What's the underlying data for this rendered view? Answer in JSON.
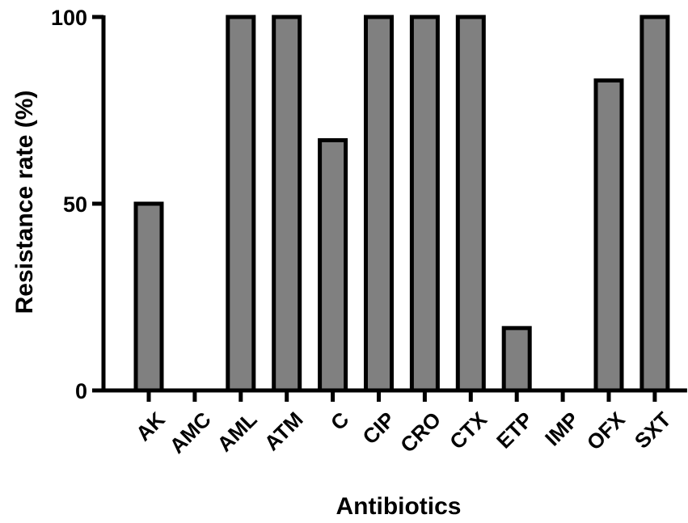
{
  "chart_data": {
    "type": "bar",
    "title": "",
    "xlabel": "Antibiotics",
    "ylabel": "Resistance rate (%)",
    "ylim": [
      0,
      100
    ],
    "yticks": [
      0,
      50,
      100
    ],
    "categories": [
      "AK",
      "AMC",
      "AML",
      "ATM",
      "C",
      "CIP",
      "CRO",
      "CTX",
      "ETP",
      "IMP",
      "OFX",
      "SXT"
    ],
    "values": [
      50,
      0,
      100,
      100,
      67,
      100,
      100,
      100,
      16.7,
      0,
      83,
      100
    ],
    "bar_color": "#808080",
    "bar_edge_color": "#000000",
    "grid": false,
    "legend": "none"
  }
}
